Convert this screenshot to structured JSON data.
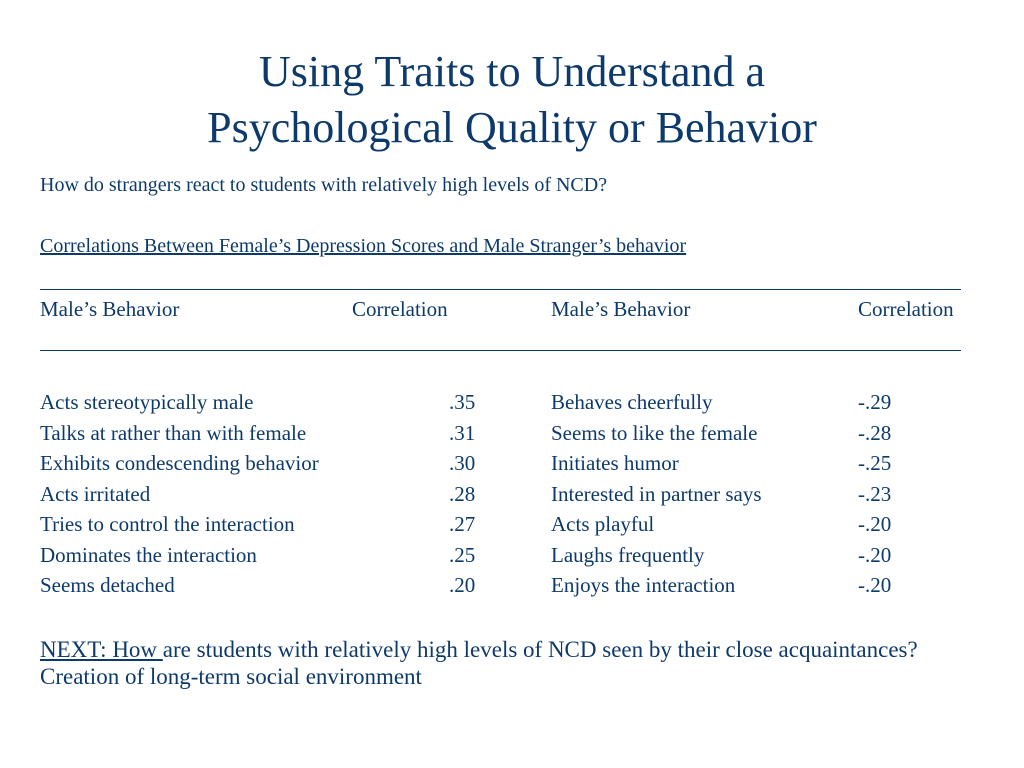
{
  "title": {
    "line1": "Using Traits to Understand a",
    "line2": "Psychological Quality or Behavior"
  },
  "question": "How do strangers react to students with relatively high levels of NCD?",
  "table": {
    "caption": "Correlations Between Female’s Depression Scores and Male Stranger’s behavior",
    "headers": [
      "Male’s Behavior",
      "Correlation",
      "Male’s Behavior",
      "Correlation"
    ],
    "rows": [
      [
        "Acts stereotypically male",
        ".35",
        "Behaves cheerfully",
        "-.29"
      ],
      [
        "Talks at rather than with female",
        ".31",
        "Seems to like the female",
        "-.28"
      ],
      [
        "Exhibits condescending behavior",
        ".30",
        "Initiates humor",
        "-.25"
      ],
      [
        "Acts irritated",
        ".28",
        "Interested in partner says",
        "-.23"
      ],
      [
        "Tries to control the interaction",
        ".27",
        "Acts playful",
        "-.20"
      ],
      [
        "Dominates the interaction",
        ".25",
        "Laughs frequently",
        "-.20"
      ],
      [
        "Seems detached",
        ".20",
        "Enjoys the interaction",
        "-.20"
      ]
    ]
  },
  "next": {
    "lead": "NEXT: How ",
    "rest": "are students with relatively high levels of NCD seen by their close acquaintances?  Creation of long-term social environment"
  },
  "colors": {
    "text": "#0d3a6b",
    "background": "#ffffff"
  }
}
